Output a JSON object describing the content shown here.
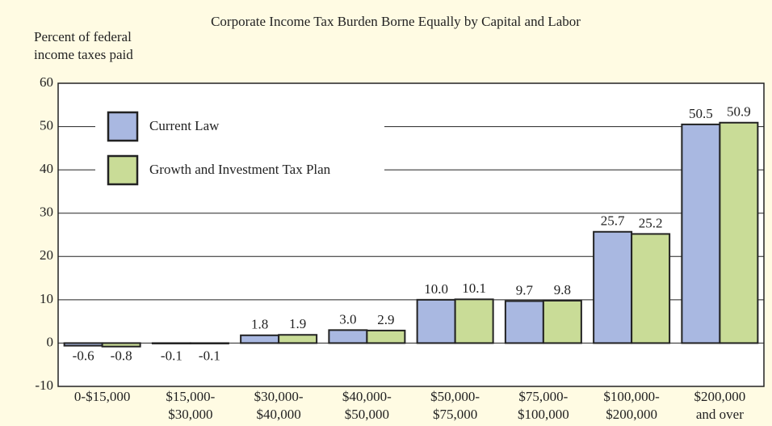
{
  "chart_data": {
    "type": "bar",
    "title": "Corporate Income Tax Burden Borne Equally by Capital and Labor",
    "y_label": "Percent of federal\nincome taxes paid",
    "categories": [
      "0-$15,000",
      "$15,000-\n$30,000",
      "$30,000-\n$40,000",
      "$40,000-\n$50,000",
      "$50,000-\n$75,000",
      "$75,000-\n$100,000",
      "$100,000-\n$200,000",
      "$200,000\nand over"
    ],
    "series": [
      {
        "name": "Current Law",
        "color": "#a9b8e1",
        "values": [
          -0.6,
          -0.1,
          1.8,
          3.0,
          10.0,
          9.7,
          25.7,
          50.5
        ],
        "value_labels": [
          "-0.6",
          "-0.1",
          "1.8",
          "3.0",
          "10.0",
          "9.7",
          "25.7",
          "50.5"
        ]
      },
      {
        "name": "Growth and Investment Tax Plan",
        "color": "#c9dc97",
        "values": [
          -0.8,
          -0.1,
          1.9,
          2.9,
          10.1,
          9.8,
          25.2,
          50.9
        ],
        "value_labels": [
          "-0.8",
          "-0.1",
          "1.9",
          "2.9",
          "10.1",
          "9.8",
          "25.2",
          "50.9"
        ]
      }
    ],
    "ylim": [
      -10,
      60
    ],
    "yticks": [
      -10,
      0,
      10,
      20,
      30,
      40,
      50,
      60
    ],
    "grid": true,
    "legend": "upper left"
  }
}
